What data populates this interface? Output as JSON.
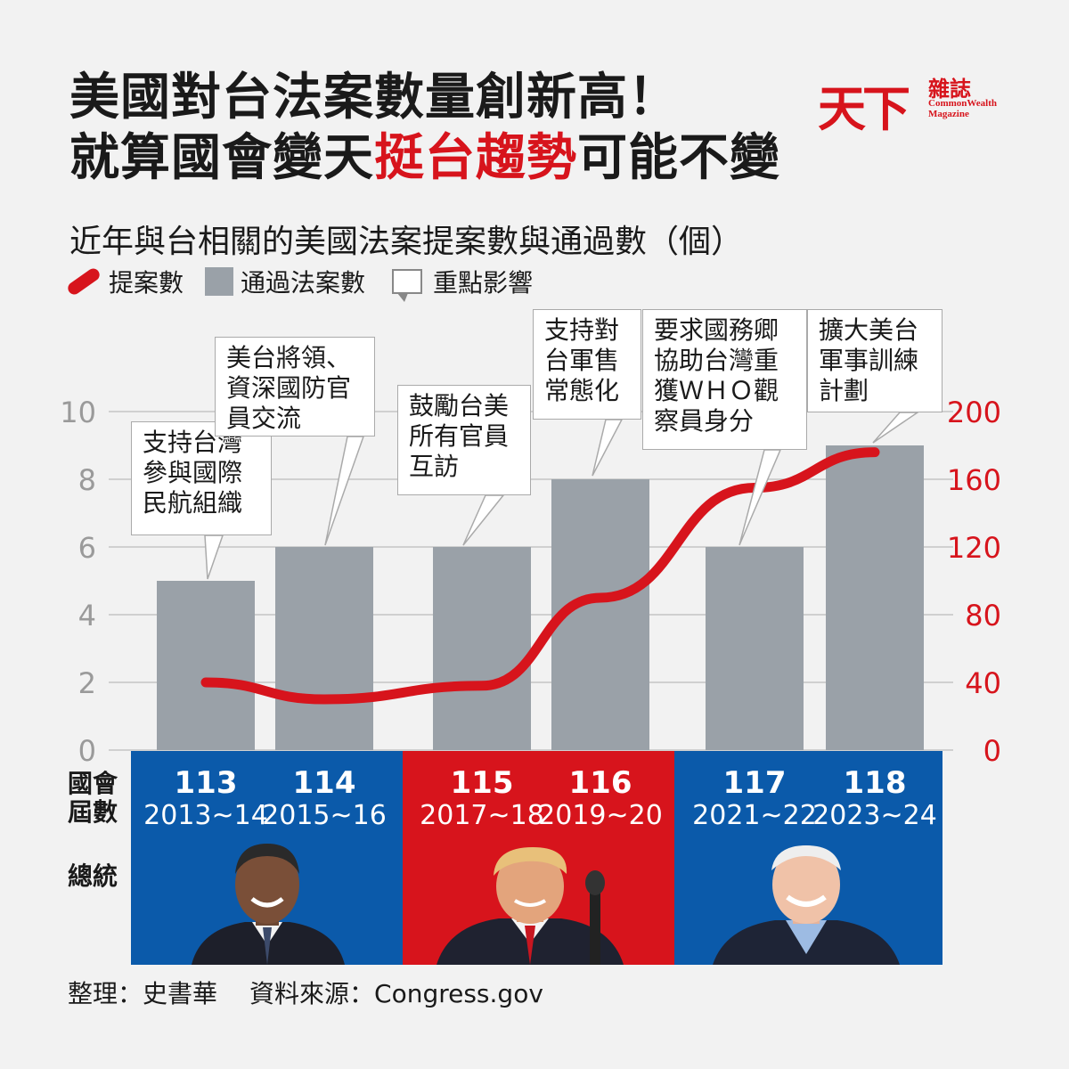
{
  "title": {
    "line1": "美國對台法案數量創新高！",
    "line2_pre": "就算國會變天",
    "line2_highlight": "挺台趨勢",
    "line2_post": "可能不變"
  },
  "logo": {
    "main": "天下",
    "sub": "雜誌",
    "en1": "CommonWealth",
    "en2": "Magazine"
  },
  "subtitle": "近年與台相關的美國法案提案數與通過數（個）",
  "legend": {
    "line_label": "提案數",
    "bar_label": "通過法案數",
    "callout_label": "重點影響"
  },
  "colors": {
    "red": "#d7141c",
    "blue": "#0b5aaa",
    "bar": "#9aa1a8"
  },
  "chart_data": {
    "type": "bar",
    "categories": [
      "113",
      "114",
      "115",
      "116",
      "117",
      "118"
    ],
    "series": [
      {
        "name": "通過法案數",
        "type": "bar",
        "axis": "left",
        "values": [
          5,
          6,
          6,
          8,
          6,
          9
        ]
      },
      {
        "name": "提案數",
        "type": "line",
        "axis": "right",
        "values": [
          40,
          30,
          38,
          90,
          155,
          176
        ]
      }
    ],
    "y_left": {
      "range": [
        0,
        10
      ],
      "ticks": [
        "0",
        "2",
        "4",
        "6",
        "8",
        "10"
      ]
    },
    "y_right": {
      "range": [
        0,
        200
      ],
      "ticks": [
        "0",
        "40",
        "80",
        "120",
        "160",
        "200"
      ]
    },
    "grid": true
  },
  "callouts": [
    "支持台灣\n參與國際\n民航組織",
    "美台將領、\n資深國防官\n員交流",
    "鼓勵台美\n所有官員\n互訪",
    "支持對\n台軍售\n常態化",
    "要求國務卿\n協助台灣重\n獲ＷＨＯ觀\n察員身分",
    "擴大美台\n軍事訓練\n計劃"
  ],
  "row_labels": {
    "congress_line1": "國會",
    "congress_line2": "屆數",
    "president": "總統"
  },
  "congresses": [
    {
      "num": "113",
      "years": "2013~14"
    },
    {
      "num": "114",
      "years": "2015~16"
    },
    {
      "num": "115",
      "years": "2017~18"
    },
    {
      "num": "116",
      "years": "2019~20"
    },
    {
      "num": "117",
      "years": "2021~22"
    },
    {
      "num": "118",
      "years": "2023~24"
    }
  ],
  "footer": {
    "compiler": "整理：史書華",
    "source": "資料來源：Congress.gov"
  }
}
